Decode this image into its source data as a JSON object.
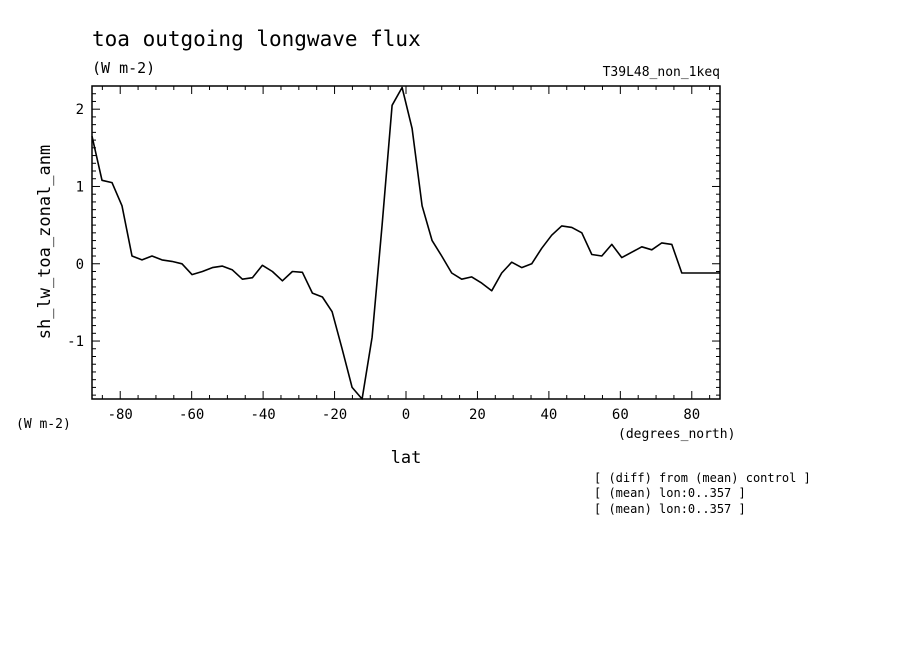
{
  "chart_data": {
    "type": "line",
    "title": "toa outgoing longwave flux",
    "subtitle": "(W m-2)",
    "run_label": "T39L48_non_1keq",
    "xlabel": "lat",
    "x_units": "(degrees_north)",
    "ylabel": "sh_lw_toa_zonal_anm",
    "y_units": "(W m-2)",
    "xlim": [
      -87.9,
      87.9
    ],
    "ylim": [
      -1.75,
      2.3
    ],
    "x_ticks": [
      -80,
      -60,
      -40,
      -20,
      0,
      20,
      40,
      60,
      80
    ],
    "x_tick_labels": [
      "-80",
      "-60",
      "-40",
      "-20",
      "0",
      "20",
      "40",
      "60",
      "80"
    ],
    "y_ticks": [
      -1,
      0,
      1,
      2
    ],
    "y_tick_labels": [
      "-1",
      "0",
      "1",
      "2"
    ],
    "grid": false,
    "series": [
      {
        "x": [
          -87.9,
          -85.1,
          -82.3,
          -79.5,
          -76.7,
          -73.9,
          -71.1,
          -68.3,
          -65.5,
          -62.7,
          -59.9,
          -57.0,
          -54.2,
          -51.4,
          -48.6,
          -45.8,
          -43.0,
          -40.2,
          -37.4,
          -34.6,
          -31.8,
          -29.0,
          -26.2,
          -23.4,
          -20.7,
          -17.9,
          -15.1,
          -12.3,
          -9.5,
          -6.7,
          -3.9,
          -1.1,
          1.7,
          4.5,
          7.3,
          10.0,
          12.8,
          15.6,
          18.4,
          21.2,
          24.0,
          26.8,
          29.6,
          32.4,
          35.2,
          38.0,
          40.8,
          43.6,
          46.4,
          49.2,
          52.0,
          54.8,
          57.6,
          60.4,
          63.2,
          66.0,
          68.8,
          71.6,
          74.4,
          77.2,
          80.0,
          82.8,
          85.6,
          87.9
        ],
        "values": [
          1.65,
          1.08,
          1.05,
          0.75,
          0.1,
          0.05,
          0.1,
          0.05,
          0.03,
          0.0,
          -0.14,
          -0.1,
          -0.05,
          -0.03,
          -0.08,
          -0.2,
          -0.18,
          -0.02,
          -0.1,
          -0.22,
          -0.1,
          -0.11,
          -0.38,
          -0.43,
          -0.62,
          -1.1,
          -1.6,
          -1.75,
          -0.95,
          0.5,
          2.05,
          2.28,
          1.75,
          0.75,
          0.3,
          0.1,
          -0.12,
          -0.2,
          -0.17,
          -0.25,
          -0.35,
          -0.12,
          0.02,
          -0.05,
          0.0,
          0.2,
          0.37,
          0.49,
          0.47,
          0.4,
          0.12,
          0.1,
          0.25,
          0.08,
          0.15,
          0.22,
          0.18,
          0.27,
          0.25,
          -0.12,
          -0.12,
          -0.12,
          -0.12,
          -0.12
        ]
      }
    ]
  },
  "notes": [
    "[ (diff) from (mean) control ]",
    "[ (mean) lon:0..357 ]",
    "[ (mean) lon:0..357 ]"
  ]
}
